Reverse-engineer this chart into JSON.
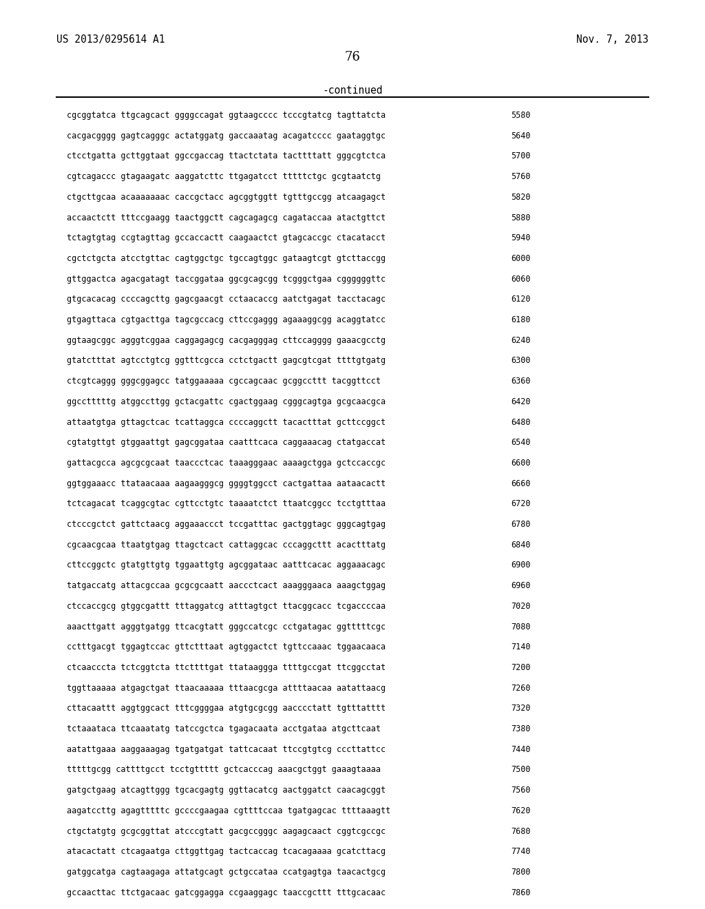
{
  "header_left": "US 2013/0295614 A1",
  "header_right": "Nov. 7, 2013",
  "page_number": "76",
  "continued_label": "-continued",
  "background_color": "#ffffff",
  "text_color": "#000000",
  "font_size_header": 10.5,
  "font_size_page": 13,
  "font_size_continued": 10.5,
  "font_size_sequence": 8.5,
  "sequences": [
    [
      "cgcggtatca ttgcagcact ggggccagat ggtaagcccc tcccgtatcg tagttatcta",
      "5580"
    ],
    [
      "cacgacgggg gagtcagggc actatggatg gaccaaatag acagatcccc gaataggtgc",
      "5640"
    ],
    [
      "ctcctgatta gcttggtaat ggccgaccag ttactctata tacttttatt gggcgtctca",
      "5700"
    ],
    [
      "cgtcagaccc gtagaagatc aaggatcttc ttgagatcct tttttctgc gcgtaatctg",
      "5760"
    ],
    [
      "ctgcttgcaa acaaaaaaac caccgctacc agcggtggtt tgtttgccgg atcaagagct",
      "5820"
    ],
    [
      "accaactctt tttccgaagg taactggctt cagcagagcg cagataccaa atactgttct",
      "5880"
    ],
    [
      "tctagtgtag ccgtagttag gccaccactt caagaactct gtagcaccgc ctacatacct",
      "5940"
    ],
    [
      "cgctctgcta atcctgttac cagtggctgc tgccagtggc gataagtcgt gtcttaccgg",
      "6000"
    ],
    [
      "gttggactca agacgatagt taccggataa ggcgcagcgg tcgggctgaa cggggggttc",
      "6060"
    ],
    [
      "gtgcacacag ccccagcttg gagcgaacgt cctaacaccg aatctgagat tacctacagc",
      "6120"
    ],
    [
      "gtgagttaca cgtgacttga tagcgccacg cttccgaggg agaaaggcgg acaggtatcc",
      "6180"
    ],
    [
      "ggtaagcggc agggtcggaa caggagagcg cacgagggag cttccagggg gaaacgcctg",
      "6240"
    ],
    [
      "gtatctttat agtcctgtcg ggtttcgcca cctctgactt gagcgtcgat ttttgtgatg",
      "6300"
    ],
    [
      "ctcgtcaggg gggcggagcc tatggaaaaa cgccagcaac gcggccttt tacggttcct",
      "6360"
    ],
    [
      "ggcctttttg atggccttgg gctacgattc cgactggaag cgggcagtga gcgcaacgca",
      "6420"
    ],
    [
      "attaatgtga gttagctcac tcattaggca ccccaggctt tacactttat gcttccggct",
      "6480"
    ],
    [
      "cgtatgttgt gtggaattgt gagcggataa caatttcaca caggaaacag ctatgaccat",
      "6540"
    ],
    [
      "gattacgcca agcgcgcaat taaccctcac taaagggaac aaaagctgga gctccaccgc",
      "6600"
    ],
    [
      "ggtggaaacc ttataacaaa aagaagggcg ggggtggcct cactgattaa aataacactt",
      "6660"
    ],
    [
      "tctcagacat tcaggcgtac cgttcctgtc taaaatctct ttaatcggcc tcctgtttaa",
      "6720"
    ],
    [
      "ctcccgctct gattctaacg aggaaaccct tccgatttac gactggtagc gggcagtgag",
      "6780"
    ],
    [
      "cgcaacgcaa ttaatgtgag ttagctcact cattaggcac cccaggcttt acactttatg",
      "6840"
    ],
    [
      "cttccggctc gtatgttgtg tggaattgtg agcggataac aatttcacac aggaaacagc",
      "6900"
    ],
    [
      "tatgaccatg attacgccaa gcgcgcaatt aaccctcact aaagggaaca aaagctggag",
      "6960"
    ],
    [
      "ctccaccgcg gtggcgattt tttaggatcg atttagtgct ttacggcacc tcgaccccaa",
      "7020"
    ],
    [
      "aaacttgatt agggtgatgg ttcacgtatt gggccatcgc cctgatagac ggtttttcgc",
      "7080"
    ],
    [
      "cctttgacgt tggagtccac gttctttaat agtggactct tgttccaaac tggaacaaca",
      "7140"
    ],
    [
      "ctcaacccta tctcggtcta ttcttttgat ttataaggga ttttgccgat ttcggcctat",
      "7200"
    ],
    [
      "tggttaaaaa atgagctgat ttaacaaaaa tttaacgcga attttaacaa aatattaacg",
      "7260"
    ],
    [
      "cttacaattt aggtggcact tttcggggaa atgtgcgcgg aacccctatt tgtttatttt",
      "7320"
    ],
    [
      "tctaaataca ttcaaatatg tatccgctca tgagacaata acctgataa atgcttcaat",
      "7380"
    ],
    [
      "aatattgaaa aaggaaagag tgatgatgat tattcacaat ttccgtgtcg cccttattcc",
      "7440"
    ],
    [
      "tttttgcgg cattttgcct tcctgttttt gctcacccag aaacgctggt gaaagtaaaa",
      "7500"
    ],
    [
      "gatgctgaag atcagttggg tgcacgagtg ggttacatcg aactggatct caacagcggt",
      "7560"
    ],
    [
      "aagatccttg agagtttttc gccccgaagaa cgttttccaa tgatgagcac ttttaaagtt",
      "7620"
    ],
    [
      "ctgctatgtg gcgcggttat atcccgtatt gacgccgggc aagagcaact cggtcgccgc",
      "7680"
    ],
    [
      "atacactatt ctcagaatga cttggttgag tactcaccag tcacagaaaa gcatcttacg",
      "7740"
    ],
    [
      "gatggcatga cagtaagaga attatgcagt gctgccataa ccatgagtga taacactgcg",
      "7800"
    ],
    [
      "gccaacttac ttctgacaac gatcggagga ccgaaggagc taaccgcttt tttgcacaac",
      "7860"
    ]
  ]
}
